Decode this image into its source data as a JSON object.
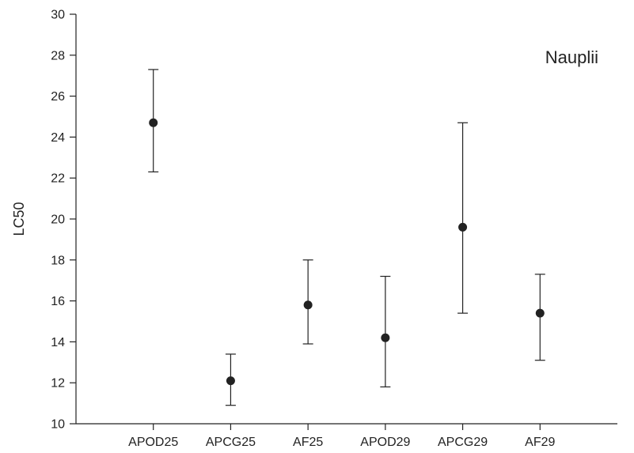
{
  "chart_data": {
    "type": "scatter",
    "annotation": "Nauplii",
    "xlabel": "",
    "ylabel": "LC50",
    "ylim": [
      10,
      30
    ],
    "yticks": [
      10,
      12,
      14,
      16,
      18,
      20,
      22,
      24,
      26,
      28,
      30
    ],
    "categories": [
      "APOD25",
      "APCG25",
      "AF25",
      "APOD29",
      "APCG29",
      "AF29"
    ],
    "values": [
      24.7,
      12.1,
      15.8,
      14.2,
      19.6,
      15.4
    ],
    "lower": [
      22.3,
      10.9,
      13.9,
      11.8,
      15.4,
      13.1
    ],
    "upper": [
      27.3,
      13.4,
      18.0,
      17.2,
      24.7,
      17.3
    ],
    "grid": false,
    "marker_color": "#222222"
  }
}
